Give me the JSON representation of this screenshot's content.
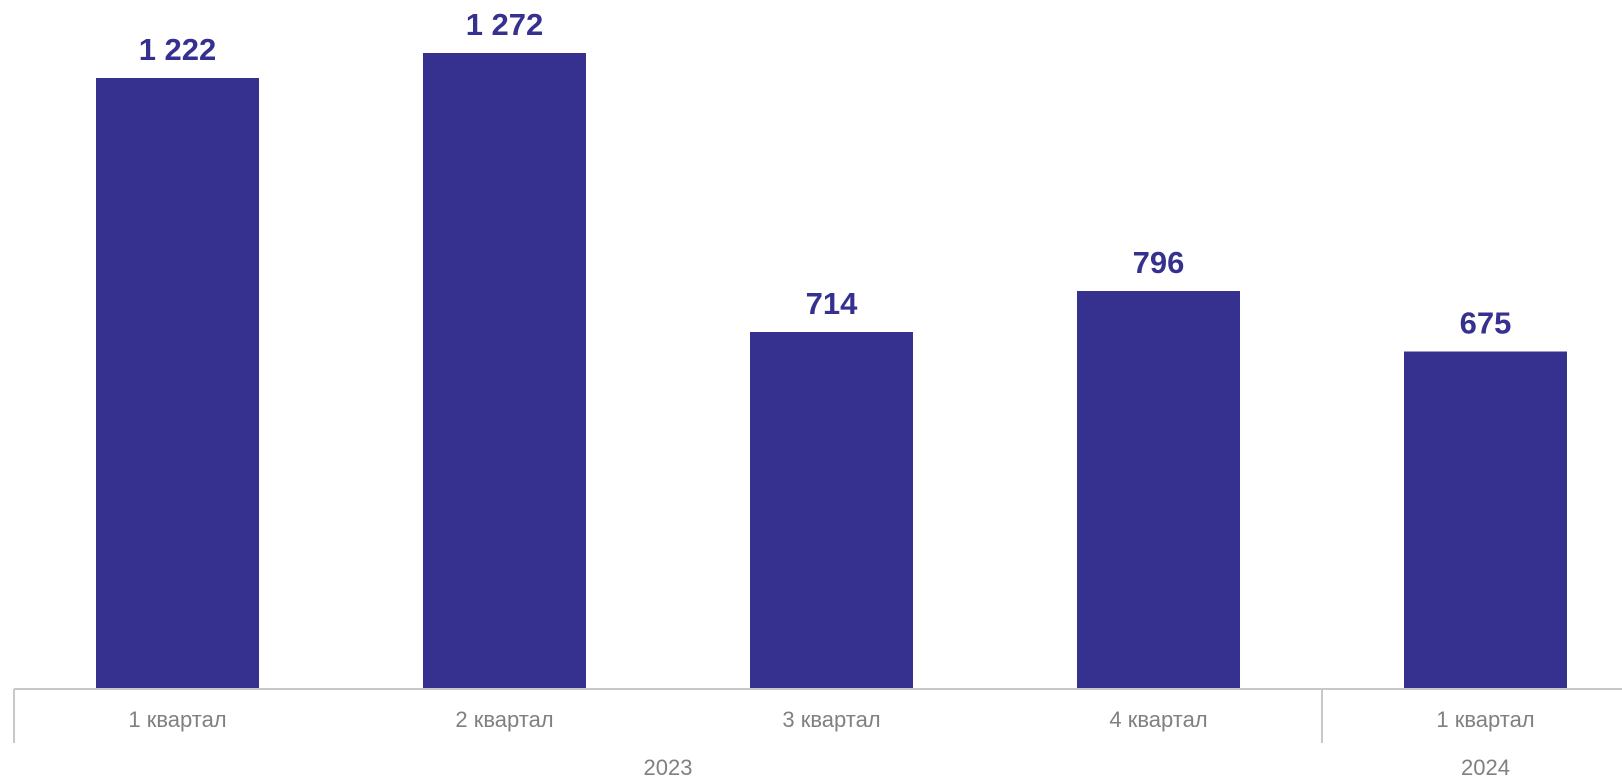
{
  "chart_data": {
    "type": "bar",
    "categories": [
      "1 квартал",
      "2 квартал",
      "3 квартал",
      "4 квартал",
      "1 квартал"
    ],
    "groups": [
      {
        "label": "2023",
        "count": 4
      },
      {
        "label": "2024",
        "count": 1
      }
    ],
    "series": [
      {
        "values": [
          1222,
          1272,
          714,
          796,
          675
        ],
        "data_labels": [
          "1 222",
          "1 272",
          "714",
          "796",
          "675"
        ]
      }
    ],
    "ylim": [
      0,
      1272
    ],
    "grid": false,
    "legend": "none",
    "colors": {
      "bar": "#36318f",
      "data_label": "#36318f",
      "tick_label": "#808080",
      "axis": "#c8c8c8"
    }
  }
}
